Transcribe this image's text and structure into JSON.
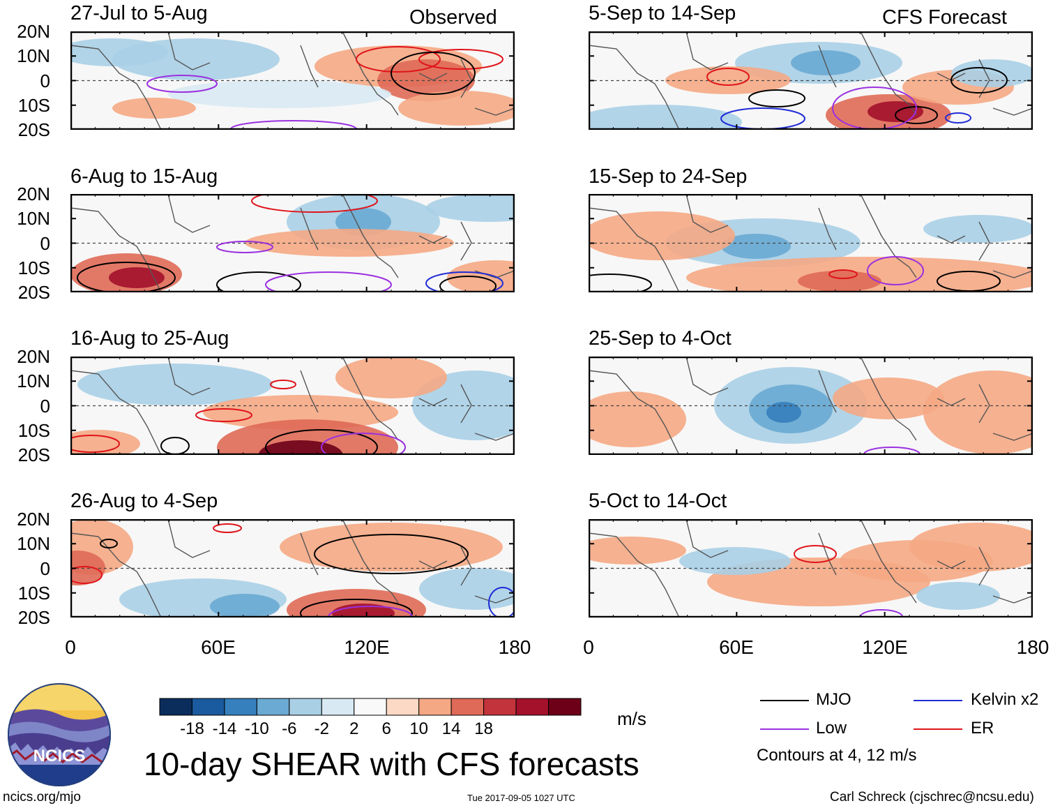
{
  "group_labels": {
    "left": "Observed",
    "right": "CFS Forecast"
  },
  "panels": [
    {
      "title": "27-Jul to 5-Aug"
    },
    {
      "title": "6-Aug to 15-Aug"
    },
    {
      "title": "16-Aug to 25-Aug"
    },
    {
      "title": "26-Aug to 4-Sep"
    },
    {
      "title": "5-Sep to 14-Sep"
    },
    {
      "title": "15-Sep to 24-Sep"
    },
    {
      "title": "25-Sep to 4-Oct"
    },
    {
      "title": "5-Oct to 14-Oct"
    }
  ],
  "chart_data": {
    "type": "heatmap",
    "title": "10-day SHEAR with CFS forecasts",
    "variable": "vertical wind shear anomaly",
    "units": "m/s",
    "x_axis": {
      "range": [
        0,
        180
      ],
      "ticks": [
        "0",
        "60E",
        "120E",
        "180"
      ]
    },
    "y_axis": {
      "range": [
        -20,
        20
      ],
      "ticks": [
        "20N",
        "10N",
        "0",
        "10S",
        "20S"
      ]
    },
    "colorbar": {
      "tick_labels": [
        "-18",
        "-14",
        "-10",
        "-6",
        "-2",
        "2",
        "6",
        "10",
        "14",
        "18"
      ],
      "colors": [
        "#0a2d5c",
        "#1a5a9e",
        "#3580bd",
        "#6aaad3",
        "#a9cfe5",
        "#d8e9f3",
        "#f9f9f9",
        "#fcd9c4",
        "#f5a884",
        "#df6a57",
        "#c2333b",
        "#a3112b",
        "#6d0018"
      ]
    },
    "legend": [
      {
        "label": "MJO",
        "color": "#000000"
      },
      {
        "label": "Kelvin x2",
        "color": "#1f2cd6"
      },
      {
        "label": "Low",
        "color": "#9b30e0"
      },
      {
        "label": "ER",
        "color": "#e0141a"
      }
    ],
    "contour_note": "Contours at 4, 12 m/s"
  },
  "footer": {
    "logo_text": "NCICS",
    "url": "ncics.org/mjo",
    "timestamp": "Tue 2017-09-05 1027 UTC",
    "credit": "Carl Schreck (cjschrec@ncsu.edu)"
  }
}
